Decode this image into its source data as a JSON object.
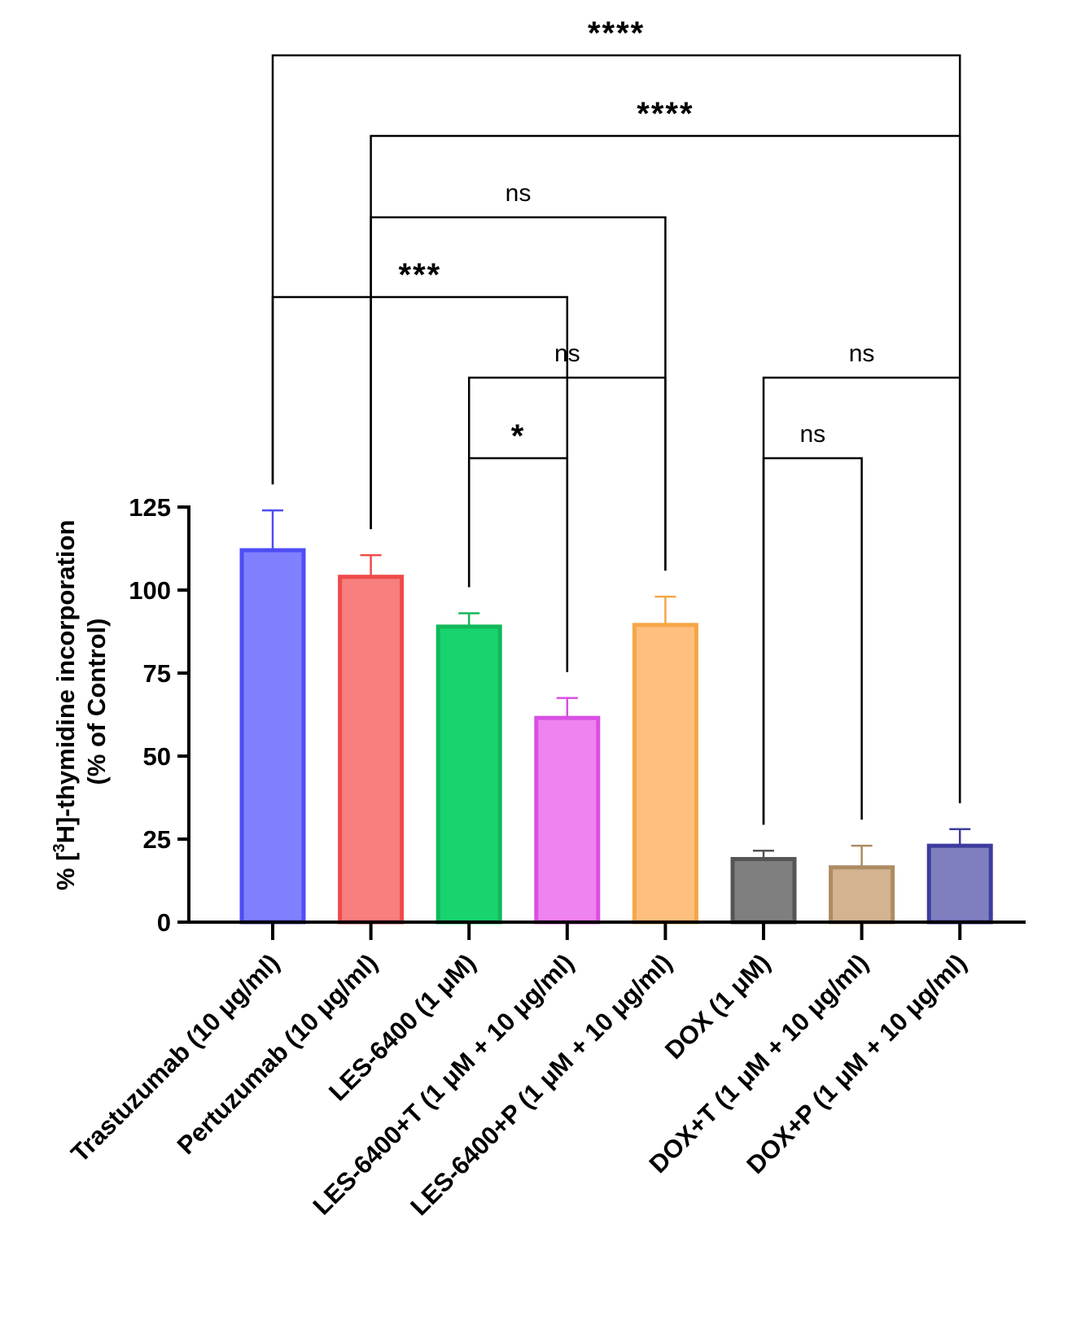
{
  "chart_data": {
    "type": "bar",
    "title": "",
    "xlabel": "",
    "ylabel": {
      "prefix": "% [",
      "sup": "3",
      "main": "H]-thymidine incorporation",
      "line2": "(% of Control)"
    },
    "ylim": [
      0,
      125
    ],
    "yticks": [
      0,
      25,
      50,
      75,
      100,
      125
    ],
    "categories": [
      "Trastuzumab (10 μg/ml)",
      "Pertuzumab (10 μg/ml)",
      "LES-6400 (1 μM)",
      "LES-6400+T (1 μM + 10 μg/ml)",
      "LES-6400+P (1 μM + 10 μg/ml)",
      "DOX (1 μM)",
      "DOX+T (1 μM + 10 μg/ml)",
      "DOX+P (1 μM + 10 μg/ml)"
    ],
    "values": [
      112,
      104,
      89,
      61.5,
      89.5,
      19,
      16.5,
      23
    ],
    "errors": [
      12,
      6.5,
      4,
      6,
      8.5,
      2.5,
      6.5,
      5
    ],
    "fill_colors": [
      "#8080ff",
      "#f77f7f",
      "#17d46e",
      "#ef83ef",
      "#ffbf7f",
      "#7f7f7f",
      "#d3b390",
      "#7f7fbf"
    ],
    "stroke_colors": [
      "#4d4df5",
      "#f04a4a",
      "#12b85a",
      "#d94fe3",
      "#f5a646",
      "#555555",
      "#ad8c64",
      "#3d3d9e"
    ],
    "comparisons": [
      {
        "a": 0,
        "b": 7,
        "label": "****",
        "level": 0
      },
      {
        "a": 1,
        "b": 7,
        "label": "****",
        "level": 1
      },
      {
        "a": 1,
        "b": 4,
        "label": "ns",
        "level": 2
      },
      {
        "a": 0,
        "b": 3,
        "label": "***",
        "level": 3
      },
      {
        "a": 2,
        "b": 4,
        "label": "ns",
        "level": 4
      },
      {
        "a": 5,
        "b": 7,
        "label": "ns",
        "level": 4
      },
      {
        "a": 2,
        "b": 3,
        "label": "*",
        "level": 5
      },
      {
        "a": 5,
        "b": 6,
        "label": "ns",
        "level": 5
      }
    ]
  }
}
